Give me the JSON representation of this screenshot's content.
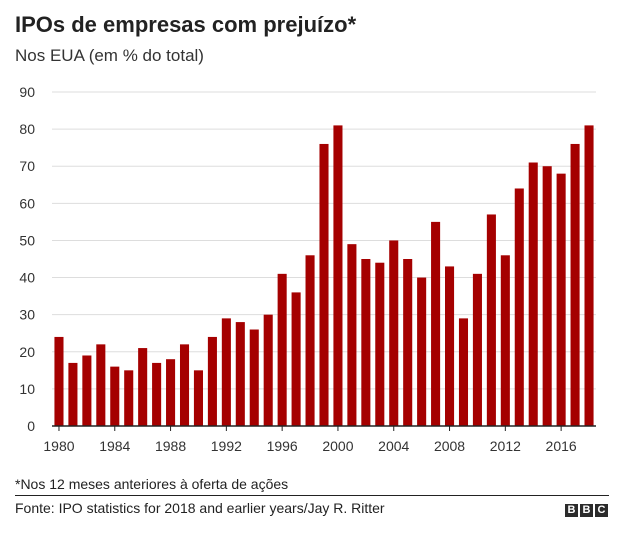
{
  "header": {
    "title": "IPOs de empresas com prejuízo*",
    "subtitle": "Nos EUA (em % do total)"
  },
  "footer": {
    "footnote": "*Nos 12 meses anteriores à oferta de ações",
    "source": "Fonte: IPO statistics for 2018 and earlier years/Jay R. Ritter",
    "logo_letters": [
      "B",
      "B",
      "C"
    ]
  },
  "colors": {
    "bar": "#a50000",
    "axis": "#222222",
    "grid": "#dddddd"
  },
  "chart_data": {
    "type": "bar",
    "title": "IPOs de empresas com prejuízo*",
    "subtitle": "Nos EUA (em % do total)",
    "xlabel": "",
    "ylabel": "",
    "ylim": [
      0,
      90
    ],
    "yticks": [
      0,
      10,
      20,
      30,
      40,
      50,
      60,
      70,
      80,
      90
    ],
    "xtick_labels": [
      "1980",
      "1984",
      "1988",
      "1992",
      "1996",
      "2000",
      "2004",
      "2008",
      "2012",
      "2016"
    ],
    "grid": true,
    "categories": [
      "1980",
      "1981",
      "1982",
      "1983",
      "1984",
      "1985",
      "1986",
      "1987",
      "1988",
      "1989",
      "1990",
      "1991",
      "1992",
      "1993",
      "1994",
      "1995",
      "1996",
      "1997",
      "1998",
      "1999",
      "2000",
      "2001",
      "2002",
      "2003",
      "2004",
      "2005",
      "2006",
      "2007",
      "2008",
      "2009",
      "2010",
      "2011",
      "2012",
      "2013",
      "2014",
      "2015",
      "2016",
      "2017",
      "2018"
    ],
    "values": [
      24,
      17,
      19,
      22,
      16,
      15,
      21,
      17,
      18,
      22,
      15,
      24,
      29,
      28,
      26,
      30,
      41,
      36,
      46,
      76,
      81,
      49,
      45,
      44,
      50,
      45,
      40,
      55,
      43,
      29,
      41,
      57,
      46,
      64,
      71,
      70,
      68,
      76,
      81
    ]
  }
}
